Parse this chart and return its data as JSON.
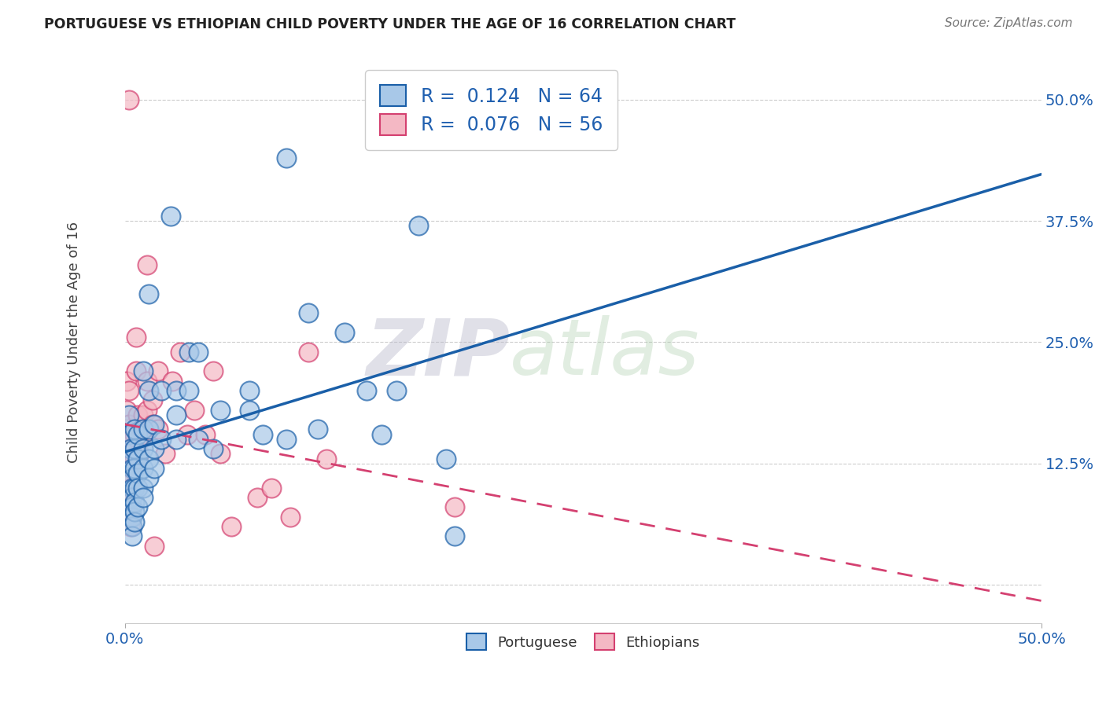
{
  "title": "PORTUGUESE VS ETHIOPIAN CHILD POVERTY UNDER THE AGE OF 16 CORRELATION CHART",
  "source": "Source: ZipAtlas.com",
  "ylabel": "Child Poverty Under the Age of 16",
  "portuguese_color": "#a8c8e8",
  "ethiopian_color": "#f4b8c4",
  "portuguese_line_color": "#1a5fa8",
  "ethiopian_line_color": "#d44070",
  "xlim": [
    0.0,
    0.5
  ],
  "ylim": [
    -0.04,
    0.54
  ],
  "yticks": [
    0.0,
    0.125,
    0.25,
    0.375,
    0.5
  ],
  "ytick_labels": [
    "",
    "12.5%",
    "25.0%",
    "37.5%",
    "50.0%"
  ],
  "xticks": [
    0.0,
    0.5
  ],
  "xtick_labels": [
    "0.0%",
    "50.0%"
  ],
  "portuguese_points": [
    [
      0.002,
      0.175
    ],
    [
      0.002,
      0.155
    ],
    [
      0.003,
      0.14
    ],
    [
      0.003,
      0.13
    ],
    [
      0.004,
      0.12
    ],
    [
      0.004,
      0.11
    ],
    [
      0.004,
      0.1
    ],
    [
      0.004,
      0.09
    ],
    [
      0.004,
      0.08
    ],
    [
      0.004,
      0.07
    ],
    [
      0.004,
      0.06
    ],
    [
      0.004,
      0.05
    ],
    [
      0.005,
      0.16
    ],
    [
      0.005,
      0.14
    ],
    [
      0.005,
      0.12
    ],
    [
      0.005,
      0.1
    ],
    [
      0.005,
      0.085
    ],
    [
      0.005,
      0.075
    ],
    [
      0.005,
      0.065
    ],
    [
      0.007,
      0.155
    ],
    [
      0.007,
      0.13
    ],
    [
      0.007,
      0.115
    ],
    [
      0.007,
      0.1
    ],
    [
      0.007,
      0.08
    ],
    [
      0.01,
      0.22
    ],
    [
      0.01,
      0.16
    ],
    [
      0.01,
      0.14
    ],
    [
      0.01,
      0.12
    ],
    [
      0.01,
      0.1
    ],
    [
      0.01,
      0.09
    ],
    [
      0.013,
      0.3
    ],
    [
      0.013,
      0.2
    ],
    [
      0.013,
      0.16
    ],
    [
      0.013,
      0.13
    ],
    [
      0.013,
      0.11
    ],
    [
      0.016,
      0.165
    ],
    [
      0.016,
      0.14
    ],
    [
      0.016,
      0.12
    ],
    [
      0.02,
      0.2
    ],
    [
      0.02,
      0.15
    ],
    [
      0.025,
      0.38
    ],
    [
      0.028,
      0.2
    ],
    [
      0.028,
      0.175
    ],
    [
      0.028,
      0.15
    ],
    [
      0.035,
      0.24
    ],
    [
      0.035,
      0.2
    ],
    [
      0.04,
      0.24
    ],
    [
      0.04,
      0.15
    ],
    [
      0.048,
      0.14
    ],
    [
      0.052,
      0.18
    ],
    [
      0.068,
      0.2
    ],
    [
      0.068,
      0.18
    ],
    [
      0.075,
      0.155
    ],
    [
      0.088,
      0.44
    ],
    [
      0.088,
      0.15
    ],
    [
      0.1,
      0.28
    ],
    [
      0.105,
      0.16
    ],
    [
      0.12,
      0.26
    ],
    [
      0.132,
      0.2
    ],
    [
      0.14,
      0.155
    ],
    [
      0.148,
      0.2
    ],
    [
      0.16,
      0.37
    ],
    [
      0.175,
      0.13
    ],
    [
      0.18,
      0.05
    ]
  ],
  "ethiopian_points": [
    [
      0.001,
      0.21
    ],
    [
      0.001,
      0.18
    ],
    [
      0.002,
      0.165
    ],
    [
      0.002,
      0.155
    ],
    [
      0.002,
      0.5
    ],
    [
      0.002,
      0.2
    ],
    [
      0.002,
      0.155
    ],
    [
      0.002,
      0.14
    ],
    [
      0.003,
      0.13
    ],
    [
      0.003,
      0.12
    ],
    [
      0.003,
      0.11
    ],
    [
      0.003,
      0.1
    ],
    [
      0.003,
      0.09
    ],
    [
      0.003,
      0.08
    ],
    [
      0.003,
      0.07
    ],
    [
      0.003,
      0.06
    ],
    [
      0.004,
      0.155
    ],
    [
      0.004,
      0.14
    ],
    [
      0.004,
      0.13
    ],
    [
      0.004,
      0.12
    ],
    [
      0.005,
      0.155
    ],
    [
      0.005,
      0.14
    ],
    [
      0.005,
      0.13
    ],
    [
      0.005,
      0.12
    ],
    [
      0.006,
      0.255
    ],
    [
      0.006,
      0.22
    ],
    [
      0.007,
      0.175
    ],
    [
      0.007,
      0.15
    ],
    [
      0.007,
      0.13
    ],
    [
      0.008,
      0.135
    ],
    [
      0.009,
      0.16
    ],
    [
      0.01,
      0.175
    ],
    [
      0.01,
      0.155
    ],
    [
      0.012,
      0.33
    ],
    [
      0.012,
      0.21
    ],
    [
      0.012,
      0.18
    ],
    [
      0.015,
      0.19
    ],
    [
      0.015,
      0.165
    ],
    [
      0.016,
      0.04
    ],
    [
      0.018,
      0.22
    ],
    [
      0.018,
      0.16
    ],
    [
      0.022,
      0.135
    ],
    [
      0.026,
      0.21
    ],
    [
      0.03,
      0.24
    ],
    [
      0.034,
      0.155
    ],
    [
      0.038,
      0.18
    ],
    [
      0.044,
      0.155
    ],
    [
      0.048,
      0.22
    ],
    [
      0.052,
      0.135
    ],
    [
      0.058,
      0.06
    ],
    [
      0.072,
      0.09
    ],
    [
      0.08,
      0.1
    ],
    [
      0.09,
      0.07
    ],
    [
      0.1,
      0.24
    ],
    [
      0.11,
      0.13
    ],
    [
      0.18,
      0.08
    ]
  ]
}
